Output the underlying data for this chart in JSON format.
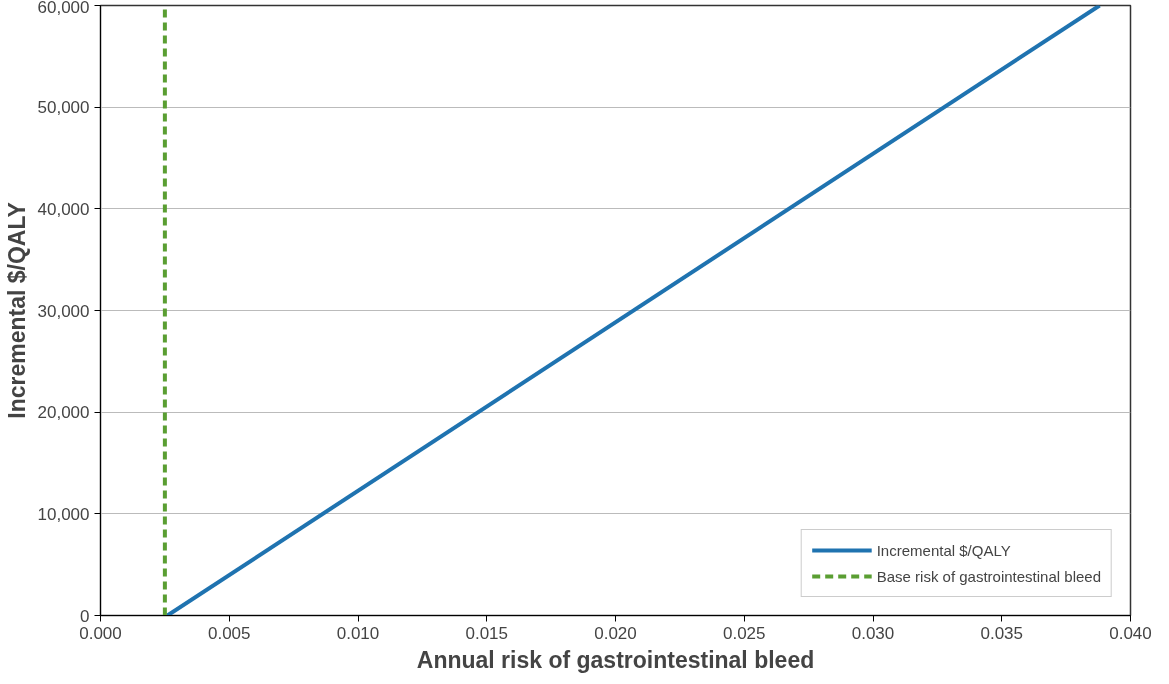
{
  "chart_data": {
    "type": "line",
    "xlabel": "Annual risk of gastrointestinal bleed",
    "ylabel": "Incremental $/QALY",
    "series": [
      {
        "name": "Incremental $/QALY",
        "color": "#1f73b0",
        "x": [
          0.0026,
          0.0388
        ],
        "values": [
          0,
          60000
        ],
        "line_style": "solid"
      },
      {
        "name": "Base risk of gastrointestinal bleed",
        "color": "#5a9e32",
        "x": [
          0.0025,
          0.0025
        ],
        "values": [
          0,
          60000
        ],
        "line_style": "dashed"
      }
    ],
    "xlim": [
      0,
      0.04
    ],
    "xticks": [
      {
        "value": 0,
        "label": "0.000"
      },
      {
        "value": 0.005,
        "label": "0.005"
      },
      {
        "value": 0.01,
        "label": "0.010"
      },
      {
        "value": 0.015,
        "label": "0.015"
      },
      {
        "value": 0.02,
        "label": "0.020"
      },
      {
        "value": 0.025,
        "label": "0.025"
      },
      {
        "value": 0.03,
        "label": "0.030"
      },
      {
        "value": 0.035,
        "label": "0.035"
      },
      {
        "value": 0.04,
        "label": "0.040"
      }
    ],
    "ylim": [
      0,
      60000
    ],
    "yticks": [
      0,
      {
        "value": 10000,
        "label": "10,000"
      },
      {
        "value": 20000,
        "label": "20,000"
      },
      {
        "value": 30000,
        "label": "30,000"
      },
      {
        "value": 40000,
        "label": "40,000"
      },
      {
        "value": 50000,
        "label": "50,000"
      },
      {
        "value": 60000,
        "label": "60,000"
      }
    ],
    "grid": "y",
    "legend": "bottom right",
    "marker": "none"
  }
}
